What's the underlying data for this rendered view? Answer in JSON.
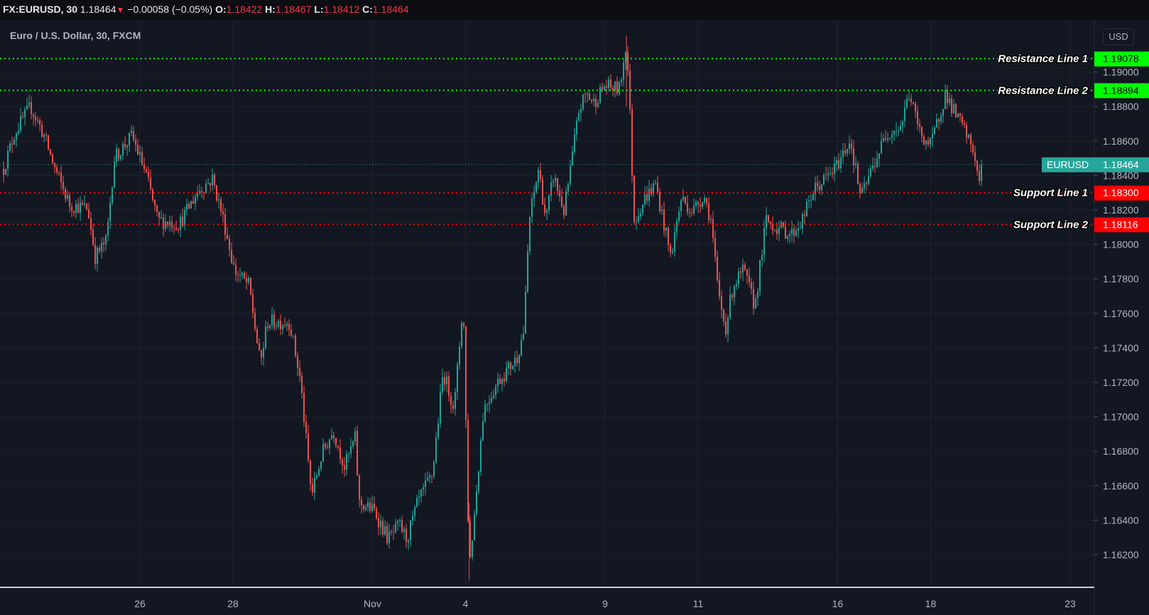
{
  "header": {
    "symbol": "FX:EURUSD, 30",
    "last": "1.18464",
    "change": "−0.00058 (−0.05%)",
    "o_label": "O:",
    "o": "1.18422",
    "h_label": "H:",
    "h": "1.18467",
    "l_label": "L:",
    "l": "1.18412",
    "c_label": "C:",
    "c": "1.18464"
  },
  "legend": "Euro / U.S. Dollar, 30, FXCM",
  "currency_button": "USD",
  "colors": {
    "up": "#26a69a",
    "down": "#ef5350",
    "resistance": "#00ff00",
    "support": "#ff0000",
    "current": "#26a69a",
    "background": "#131722",
    "grid": "#1e222d"
  },
  "chart_data": {
    "type": "candlestick",
    "title": "Euro / U.S. Dollar, 30, FXCM",
    "x_unit": "trading-day index (0 = Oct 26)",
    "x_ticks": [
      {
        "label": "26",
        "x": 0
      },
      {
        "label": "28",
        "x": 2
      },
      {
        "label": "Nov",
        "x": 5
      },
      {
        "label": "4",
        "x": 7
      },
      {
        "label": "9",
        "x": 10
      },
      {
        "label": "11",
        "x": 12
      },
      {
        "label": "16",
        "x": 15
      },
      {
        "label": "18",
        "x": 17
      },
      {
        "label": "23",
        "x": 20
      }
    ],
    "y_ticks": [
      "1.16200",
      "1.16400",
      "1.16600",
      "1.16800",
      "1.17000",
      "1.17200",
      "1.17400",
      "1.17600",
      "1.17800",
      "1.18000",
      "1.18200",
      "1.18400",
      "1.18600",
      "1.18800",
      "1.19000"
    ],
    "ylim": [
      1.16,
      1.193
    ],
    "xlim": [
      -3,
      20.5
    ],
    "price_path": [
      [
        -2.93,
        1.1844
      ],
      [
        -2.69,
        1.1865
      ],
      [
        -2.35,
        1.188
      ],
      [
        -2.06,
        1.1863
      ],
      [
        -1.83,
        1.1844
      ],
      [
        -1.51,
        1.1823
      ],
      [
        -1.12,
        1.1821
      ],
      [
        -0.96,
        1.1793
      ],
      [
        -0.72,
        1.1802
      ],
      [
        -0.55,
        1.185
      ],
      [
        -0.17,
        1.1863
      ],
      [
        0.14,
        1.184
      ],
      [
        0.38,
        1.1814
      ],
      [
        0.85,
        1.1812
      ],
      [
        1.25,
        1.1831
      ],
      [
        1.56,
        1.1838
      ],
      [
        1.8,
        1.1814
      ],
      [
        2.03,
        1.1785
      ],
      [
        2.35,
        1.1776
      ],
      [
        2.59,
        1.173
      ],
      [
        2.74,
        1.1755
      ],
      [
        3.22,
        1.1755
      ],
      [
        3.45,
        1.1721
      ],
      [
        3.69,
        1.1654
      ],
      [
        3.92,
        1.1679
      ],
      [
        4.16,
        1.1692
      ],
      [
        4.4,
        1.1671
      ],
      [
        4.63,
        1.1688
      ],
      [
        4.71,
        1.165
      ],
      [
        5.03,
        1.1646
      ],
      [
        5.34,
        1.1629
      ],
      [
        5.58,
        1.1637
      ],
      [
        5.74,
        1.1629
      ],
      [
        5.97,
        1.165
      ],
      [
        6.29,
        1.1667
      ],
      [
        6.52,
        1.1726
      ],
      [
        6.76,
        1.1705
      ],
      [
        6.95,
        1.1768
      ],
      [
        7.08,
        1.1612
      ],
      [
        7.2,
        1.1646
      ],
      [
        7.39,
        1.1705
      ],
      [
        7.71,
        1.1721
      ],
      [
        8.1,
        1.1734
      ],
      [
        8.26,
        1.1751
      ],
      [
        8.37,
        1.1814
      ],
      [
        8.57,
        1.1844
      ],
      [
        8.73,
        1.1814
      ],
      [
        8.89,
        1.184
      ],
      [
        9.12,
        1.1819
      ],
      [
        9.28,
        1.1848
      ],
      [
        9.44,
        1.1878
      ],
      [
        9.6,
        1.1888
      ],
      [
        9.75,
        1.1882
      ],
      [
        9.99,
        1.1892
      ],
      [
        10.31,
        1.189
      ],
      [
        10.46,
        1.1918
      ],
      [
        10.54,
        1.1873
      ],
      [
        10.62,
        1.1814
      ],
      [
        10.86,
        1.1827
      ],
      [
        11.09,
        1.1835
      ],
      [
        11.25,
        1.1814
      ],
      [
        11.41,
        1.1793
      ],
      [
        11.64,
        1.1827
      ],
      [
        11.88,
        1.1819
      ],
      [
        12.12,
        1.1829
      ],
      [
        12.28,
        1.1814
      ],
      [
        12.43,
        1.1772
      ],
      [
        12.59,
        1.1751
      ],
      [
        12.75,
        1.1776
      ],
      [
        12.98,
        1.1785
      ],
      [
        13.22,
        1.1764
      ],
      [
        13.46,
        1.1814
      ],
      [
        13.69,
        1.181
      ],
      [
        14.01,
        1.1806
      ],
      [
        14.24,
        1.1814
      ],
      [
        14.48,
        1.1831
      ],
      [
        14.95,
        1.1844
      ],
      [
        15.27,
        1.1861
      ],
      [
        15.5,
        1.1827
      ],
      [
        15.74,
        1.1844
      ],
      [
        16.06,
        1.1865
      ],
      [
        16.37,
        1.1869
      ],
      [
        16.53,
        1.1888
      ],
      [
        16.77,
        1.1865
      ],
      [
        17.0,
        1.1857
      ],
      [
        17.32,
        1.1888
      ],
      [
        17.48,
        1.1878
      ],
      [
        17.71,
        1.1867
      ],
      [
        17.95,
        1.1852
      ],
      [
        18.03,
        1.1835
      ],
      [
        18.11,
        1.1846
      ]
    ],
    "horizontal_lines": [
      {
        "label": "Resistance Line 1",
        "price": 1.19078,
        "price_text": "1.19078",
        "kind": "resistance"
      },
      {
        "label": "Resistance Line 2",
        "price": 1.18894,
        "price_text": "1.18894",
        "kind": "resistance"
      },
      {
        "label": "Support Line 1",
        "price": 1.183,
        "price_text": "1.18300",
        "kind": "support"
      },
      {
        "label": "Support Line 2",
        "price": 1.18116,
        "price_text": "1.18116",
        "kind": "support"
      }
    ],
    "current_price": {
      "symbol": "EURUSD",
      "price": 1.18464,
      "price_text": "1.18464"
    }
  }
}
